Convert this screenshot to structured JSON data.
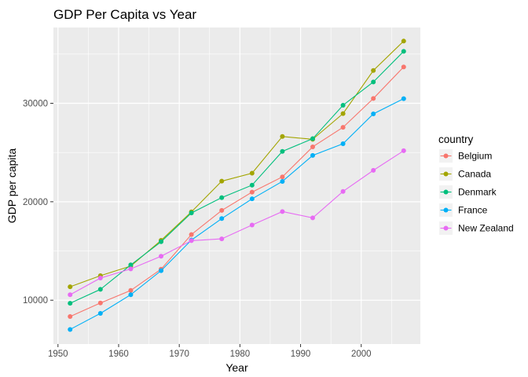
{
  "chart_data": {
    "type": "line",
    "title": "GDP Per Capita vs Year",
    "xlabel": "Year",
    "ylabel": "GDP per capita",
    "xlim": [
      1949.25,
      2009.75
    ],
    "ylim": [
      5550,
      37700
    ],
    "x_ticks": [
      1950,
      1960,
      1970,
      1980,
      1990,
      2000
    ],
    "y_ticks": [
      10000,
      20000,
      30000
    ],
    "x_tick_labels": [
      "1950",
      "1960",
      "1970",
      "1980",
      "1990",
      "2000"
    ],
    "y_tick_labels": [
      "10000",
      "20000",
      "30000"
    ],
    "grid": true,
    "legend": {
      "title": "country",
      "position": "right"
    },
    "x": [
      1952,
      1957,
      1962,
      1967,
      1972,
      1977,
      1982,
      1987,
      1992,
      1997,
      2002,
      2007
    ],
    "series": [
      {
        "name": "Belgium",
        "color": "#F8766D",
        "values": [
          8343,
          9715,
          10991,
          13149,
          16672,
          19118,
          20980,
          22526,
          25576,
          27561,
          30486,
          33693
        ]
      },
      {
        "name": "Canada",
        "color": "#A3A500",
        "values": [
          11367,
          12490,
          13462,
          16077,
          18971,
          22091,
          22899,
          26627,
          26343,
          28955,
          33329,
          36319
        ]
      },
      {
        "name": "Denmark",
        "color": "#00BF7D",
        "values": [
          9692,
          11100,
          13583,
          15937,
          18866,
          20423,
          21688,
          25116,
          26407,
          29804,
          32166,
          35278
        ]
      },
      {
        "name": "France",
        "color": "#00B0F6",
        "values": [
          7030,
          8663,
          10560,
          12999,
          16107,
          18293,
          20294,
          22066,
          24704,
          25890,
          28926,
          30470
        ]
      },
      {
        "name": "New Zealand",
        "color": "#E76BF3",
        "values": [
          10557,
          12247,
          13176,
          14464,
          16046,
          16234,
          17632,
          19007,
          18363,
          21050,
          23190,
          25185
        ]
      }
    ]
  }
}
